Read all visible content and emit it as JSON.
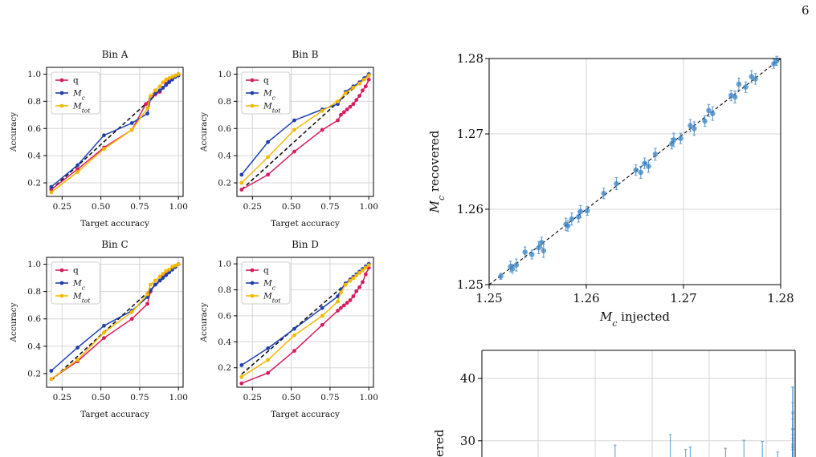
{
  "page": {
    "number": "6"
  },
  "colors": {
    "q": "#d81b60",
    "Mc": "#1f3fb0",
    "Mtot": "#f5b800",
    "points": "#3a84c4",
    "diag": "#111111"
  },
  "chart_data": [
    {
      "type": "line",
      "title": "Bin A",
      "xlabel": "Target accuracy",
      "ylabel": "Accuracy",
      "xlim": [
        0.15,
        1.03
      ],
      "ylim": [
        0.1,
        1.05
      ],
      "xticks": [
        0.25,
        0.5,
        0.75,
        1.0
      ],
      "xtick_labels": [
        "0.25",
        "0.50",
        "0.75",
        "1.00"
      ],
      "yticks": [
        0.2,
        0.4,
        0.6,
        0.8,
        1.0
      ],
      "ytick_labels": [
        "0.2",
        "0.4",
        "0.6",
        "0.8",
        "1.0"
      ],
      "grid": true,
      "legend": "top-left",
      "reference_line": [
        [
          0.18,
          0.15
        ],
        [
          1.0,
          1.0
        ]
      ],
      "series": [
        {
          "name": "q",
          "key": "q",
          "x": [
            0.18,
            0.35,
            0.52,
            0.7,
            0.79,
            0.82,
            0.85,
            0.88,
            0.9,
            0.92,
            0.94,
            0.96,
            0.98,
            1.0
          ],
          "y": [
            0.15,
            0.3,
            0.46,
            0.59,
            0.78,
            0.82,
            0.85,
            0.87,
            0.9,
            0.93,
            0.95,
            0.97,
            0.98,
            1.0
          ]
        },
        {
          "name": "M_c",
          "key": "Mc",
          "x": [
            0.18,
            0.35,
            0.52,
            0.7,
            0.8,
            0.82,
            0.85,
            0.88,
            0.9,
            0.92,
            0.94,
            0.96,
            0.98,
            1.0
          ],
          "y": [
            0.17,
            0.33,
            0.55,
            0.64,
            0.71,
            0.82,
            0.86,
            0.88,
            0.9,
            0.92,
            0.94,
            0.96,
            0.98,
            0.99
          ]
        },
        {
          "name": "M_tot",
          "key": "Mtot",
          "x": [
            0.18,
            0.35,
            0.52,
            0.7,
            0.8,
            0.82,
            0.85,
            0.88,
            0.9,
            0.92,
            0.94,
            0.96,
            0.98,
            1.0
          ],
          "y": [
            0.13,
            0.28,
            0.45,
            0.59,
            0.75,
            0.84,
            0.88,
            0.91,
            0.94,
            0.96,
            0.97,
            0.98,
            0.99,
            1.0
          ]
        }
      ]
    },
    {
      "type": "line",
      "title": "Bin B",
      "xlabel": "Target accuracy",
      "ylabel": "Accuracy",
      "xlim": [
        0.15,
        1.03
      ],
      "ylim": [
        0.1,
        1.05
      ],
      "xticks": [
        0.25,
        0.5,
        0.75,
        1.0
      ],
      "xtick_labels": [
        "0.25",
        "0.50",
        "0.75",
        "1.00"
      ],
      "yticks": [
        0.2,
        0.4,
        0.6,
        0.8,
        1.0
      ],
      "ytick_labels": [
        "0.2",
        "0.4",
        "0.6",
        "0.8",
        "1.0"
      ],
      "grid": true,
      "legend": "top-left",
      "reference_line": [
        [
          0.18,
          0.15
        ],
        [
          1.0,
          1.0
        ]
      ],
      "series": [
        {
          "name": "q",
          "key": "q",
          "x": [
            0.18,
            0.35,
            0.52,
            0.7,
            0.8,
            0.82,
            0.84,
            0.86,
            0.88,
            0.9,
            0.92,
            0.94,
            0.96,
            0.98,
            1.0
          ],
          "y": [
            0.15,
            0.26,
            0.43,
            0.59,
            0.66,
            0.7,
            0.72,
            0.74,
            0.76,
            0.78,
            0.81,
            0.84,
            0.88,
            0.91,
            0.96
          ]
        },
        {
          "name": "M_c",
          "key": "Mc",
          "x": [
            0.18,
            0.35,
            0.52,
            0.7,
            0.8,
            0.85,
            0.9,
            0.94,
            0.97,
            1.0
          ],
          "y": [
            0.26,
            0.5,
            0.66,
            0.74,
            0.78,
            0.87,
            0.91,
            0.94,
            0.97,
            1.0
          ]
        },
        {
          "name": "M_tot",
          "key": "Mtot",
          "x": [
            0.18,
            0.35,
            0.52,
            0.7,
            0.8,
            0.85,
            0.9,
            0.94,
            0.97,
            1.0
          ],
          "y": [
            0.2,
            0.39,
            0.59,
            0.73,
            0.8,
            0.86,
            0.9,
            0.93,
            0.96,
            0.99
          ]
        }
      ]
    },
    {
      "type": "line",
      "title": "Bin C",
      "xlabel": "Target accuracy",
      "ylabel": "Accuracy",
      "xlim": [
        0.15,
        1.03
      ],
      "ylim": [
        0.1,
        1.05
      ],
      "xticks": [
        0.25,
        0.5,
        0.75,
        1.0
      ],
      "xtick_labels": [
        "0.25",
        "0.50",
        "0.75",
        "1.00"
      ],
      "yticks": [
        0.2,
        0.4,
        0.6,
        0.8,
        1.0
      ],
      "ytick_labels": [
        "0.2",
        "0.4",
        "0.6",
        "0.8",
        "1.0"
      ],
      "grid": true,
      "legend": "top-left",
      "reference_line": [
        [
          0.18,
          0.15
        ],
        [
          1.0,
          1.0
        ]
      ],
      "series": [
        {
          "name": "q",
          "key": "q",
          "x": [
            0.18,
            0.35,
            0.52,
            0.7,
            0.8,
            0.82,
            0.85,
            0.88,
            0.9,
            0.92,
            0.94,
            0.96,
            0.98,
            1.0
          ],
          "y": [
            0.16,
            0.29,
            0.46,
            0.6,
            0.71,
            0.8,
            0.85,
            0.88,
            0.91,
            0.93,
            0.95,
            0.97,
            0.98,
            1.0
          ]
        },
        {
          "name": "M_c",
          "key": "Mc",
          "x": [
            0.18,
            0.35,
            0.52,
            0.7,
            0.8,
            0.82,
            0.85,
            0.88,
            0.9,
            0.92,
            0.94,
            0.96,
            0.98,
            1.0
          ],
          "y": [
            0.22,
            0.39,
            0.55,
            0.66,
            0.76,
            0.81,
            0.85,
            0.88,
            0.9,
            0.92,
            0.94,
            0.96,
            0.98,
            1.0
          ]
        },
        {
          "name": "M_tot",
          "key": "Mtot",
          "x": [
            0.18,
            0.35,
            0.52,
            0.7,
            0.8,
            0.82,
            0.85,
            0.88,
            0.9,
            0.92,
            0.94,
            0.96,
            0.98,
            1.0
          ],
          "y": [
            0.16,
            0.3,
            0.5,
            0.65,
            0.78,
            0.85,
            0.88,
            0.91,
            0.93,
            0.95,
            0.96,
            0.98,
            0.99,
            1.0
          ]
        }
      ]
    },
    {
      "type": "line",
      "title": "Bin D",
      "xlabel": "Target accuracy",
      "ylabel": "Accuracy",
      "xlim": [
        0.15,
        1.03
      ],
      "ylim": [
        0.05,
        1.05
      ],
      "xticks": [
        0.25,
        0.5,
        0.75,
        1.0
      ],
      "xtick_labels": [
        "0.25",
        "0.50",
        "0.75",
        "1.00"
      ],
      "yticks": [
        0.2,
        0.4,
        0.6,
        0.8,
        1.0
      ],
      "ytick_labels": [
        "0.2",
        "0.4",
        "0.6",
        "0.8",
        "1.0"
      ],
      "grid": true,
      "legend": "top-left",
      "reference_line": [
        [
          0.18,
          0.15
        ],
        [
          1.0,
          1.0
        ]
      ],
      "series": [
        {
          "name": "q",
          "key": "q",
          "x": [
            0.18,
            0.35,
            0.52,
            0.7,
            0.8,
            0.82,
            0.84,
            0.86,
            0.88,
            0.9,
            0.92,
            0.94,
            0.96,
            0.98,
            1.0
          ],
          "y": [
            0.08,
            0.16,
            0.33,
            0.53,
            0.64,
            0.66,
            0.68,
            0.7,
            0.72,
            0.75,
            0.79,
            0.82,
            0.86,
            0.92,
            0.97
          ]
        },
        {
          "name": "M_c",
          "key": "Mc",
          "x": [
            0.18,
            0.35,
            0.52,
            0.7,
            0.8,
            0.82,
            0.85,
            0.88,
            0.9,
            0.92,
            0.94,
            0.96,
            0.98,
            1.0
          ],
          "y": [
            0.22,
            0.35,
            0.5,
            0.66,
            0.75,
            0.8,
            0.85,
            0.88,
            0.9,
            0.92,
            0.94,
            0.96,
            0.98,
            1.0
          ]
        },
        {
          "name": "M_tot",
          "key": "Mtot",
          "x": [
            0.18,
            0.35,
            0.52,
            0.7,
            0.8,
            0.82,
            0.85,
            0.88,
            0.9,
            0.92,
            0.94,
            0.96,
            0.98,
            1.0
          ],
          "y": [
            0.13,
            0.26,
            0.45,
            0.6,
            0.71,
            0.78,
            0.84,
            0.87,
            0.89,
            0.91,
            0.93,
            0.95,
            0.97,
            0.99
          ]
        }
      ]
    },
    {
      "type": "scatter",
      "title": "",
      "xlabel": "M_c injected",
      "ylabel": "M_c recovered",
      "xlim": [
        1.25,
        1.28
      ],
      "ylim": [
        1.25,
        1.28
      ],
      "xticks": [
        1.25,
        1.26,
        1.27,
        1.28
      ],
      "xtick_labels": [
        "1.25",
        "1.26",
        "1.27",
        "1.28"
      ],
      "yticks": [
        1.25,
        1.26,
        1.27,
        1.28
      ],
      "ytick_labels": [
        "1.25",
        "1.26",
        "1.27",
        "1.28"
      ],
      "grid": true,
      "reference_line": [
        [
          1.25,
          1.25
        ],
        [
          1.28,
          1.28
        ]
      ],
      "points": [
        {
          "x": 1.2512,
          "y": 1.2511,
          "err": 0.0004
        },
        {
          "x": 1.2522,
          "y": 1.2524,
          "err": 0.0007
        },
        {
          "x": 1.2524,
          "y": 1.2521,
          "err": 0.0006
        },
        {
          "x": 1.2528,
          "y": 1.2526,
          "err": 0.0008
        },
        {
          "x": 1.2537,
          "y": 1.2543,
          "err": 0.0007
        },
        {
          "x": 1.2544,
          "y": 1.254,
          "err": 0.0006
        },
        {
          "x": 1.2551,
          "y": 1.2549,
          "err": 0.0008
        },
        {
          "x": 1.2554,
          "y": 1.2556,
          "err": 0.0007
        },
        {
          "x": 1.2556,
          "y": 1.2545,
          "err": 0.0009
        },
        {
          "x": 1.2579,
          "y": 1.258,
          "err": 0.0008
        },
        {
          "x": 1.2581,
          "y": 1.2578,
          "err": 0.0007
        },
        {
          "x": 1.2585,
          "y": 1.2587,
          "err": 0.0008
        },
        {
          "x": 1.2592,
          "y": 1.259,
          "err": 0.0007
        },
        {
          "x": 1.2594,
          "y": 1.2597,
          "err": 0.0008
        },
        {
          "x": 1.2601,
          "y": 1.2598,
          "err": 0.0006
        },
        {
          "x": 1.2618,
          "y": 1.2621,
          "err": 0.0007
        },
        {
          "x": 1.2631,
          "y": 1.2634,
          "err": 0.0008
        },
        {
          "x": 1.2651,
          "y": 1.2652,
          "err": 0.0007
        },
        {
          "x": 1.2656,
          "y": 1.2649,
          "err": 0.0008
        },
        {
          "x": 1.266,
          "y": 1.2661,
          "err": 0.0007
        },
        {
          "x": 1.2664,
          "y": 1.2657,
          "err": 0.0008
        },
        {
          "x": 1.2671,
          "y": 1.2673,
          "err": 0.0008
        },
        {
          "x": 1.2688,
          "y": 1.2687,
          "err": 0.0007
        },
        {
          "x": 1.269,
          "y": 1.2692,
          "err": 0.0009
        },
        {
          "x": 1.2697,
          "y": 1.2694,
          "err": 0.0007
        },
        {
          "x": 1.2707,
          "y": 1.2711,
          "err": 0.0008
        },
        {
          "x": 1.2711,
          "y": 1.2707,
          "err": 0.0009
        },
        {
          "x": 1.2722,
          "y": 1.2717,
          "err": 0.0007
        },
        {
          "x": 1.2726,
          "y": 1.2731,
          "err": 0.0008
        },
        {
          "x": 1.273,
          "y": 1.2727,
          "err": 0.0009
        },
        {
          "x": 1.2749,
          "y": 1.2751,
          "err": 0.0007
        },
        {
          "x": 1.2753,
          "y": 1.2749,
          "err": 0.0008
        },
        {
          "x": 1.2757,
          "y": 1.2766,
          "err": 0.0008
        },
        {
          "x": 1.2764,
          "y": 1.2762,
          "err": 0.0007
        },
        {
          "x": 1.277,
          "y": 1.2776,
          "err": 0.0008
        },
        {
          "x": 1.2774,
          "y": 1.2773,
          "err": 0.0007
        },
        {
          "x": 1.2793,
          "y": 1.2793,
          "err": 0.0006
        },
        {
          "x": 1.2796,
          "y": 1.2797,
          "err": 0.0006
        }
      ]
    },
    {
      "type": "scatter",
      "title": "",
      "xlabel": "",
      "ylabel": "ered",
      "ylim": [
        27.4,
        44.5
      ],
      "yticks": [
        30,
        40
      ],
      "ytick_labels": [
        "30",
        "40"
      ],
      "grid": true,
      "partially_visible": true,
      "errorbars": [
        {
          "x": 0.32,
          "top": 29.3,
          "bottom": 27.4
        },
        {
          "x": 0.5,
          "top": 31.0,
          "bottom": 27.4
        },
        {
          "x": 0.565,
          "top": 29.0,
          "bottom": 27.4
        },
        {
          "x": 0.55,
          "top": 28.6,
          "bottom": 27.4
        },
        {
          "x": 0.68,
          "top": 28.8,
          "bottom": 27.4
        },
        {
          "x": 0.74,
          "top": 30.1,
          "bottom": 27.4
        },
        {
          "x": 0.8,
          "top": 29.9,
          "bottom": 27.4
        },
        {
          "x": 0.85,
          "top": 28.2,
          "bottom": 27.4
        },
        {
          "x": 0.9,
          "top": 31.0,
          "bottom": 27.4
        },
        {
          "x": 0.905,
          "top": 38.6,
          "bottom": 27.4
        },
        {
          "x": 0.915,
          "top": 29.5,
          "bottom": 27.4
        },
        {
          "x": 0.94,
          "top": 28.9,
          "bottom": 27.4
        },
        {
          "x": 0.99,
          "top": 31.9,
          "bottom": 27.4
        },
        {
          "x": 1.0,
          "top": 31.8,
          "bottom": 27.4
        },
        {
          "x": 1.02,
          "top": 34.6,
          "bottom": 27.4
        },
        {
          "x": 1.04,
          "top": 31.9,
          "bottom": 27.4
        },
        {
          "x": 1.05,
          "top": 29.2,
          "bottom": 27.4
        },
        {
          "x": 1.065,
          "top": 28.6,
          "bottom": 27.4
        },
        {
          "x": 1.075,
          "top": 33.5,
          "bottom": 27.4
        },
        {
          "x": 1.09,
          "top": 36.1,
          "bottom": 27.4
        },
        {
          "x": 1.105,
          "top": 38.6,
          "bottom": 27.4
        },
        {
          "x": 1.11,
          "top": 34.4,
          "bottom": 27.4
        },
        {
          "x": 1.115,
          "top": 30.4,
          "bottom": 27.4
        }
      ]
    }
  ]
}
